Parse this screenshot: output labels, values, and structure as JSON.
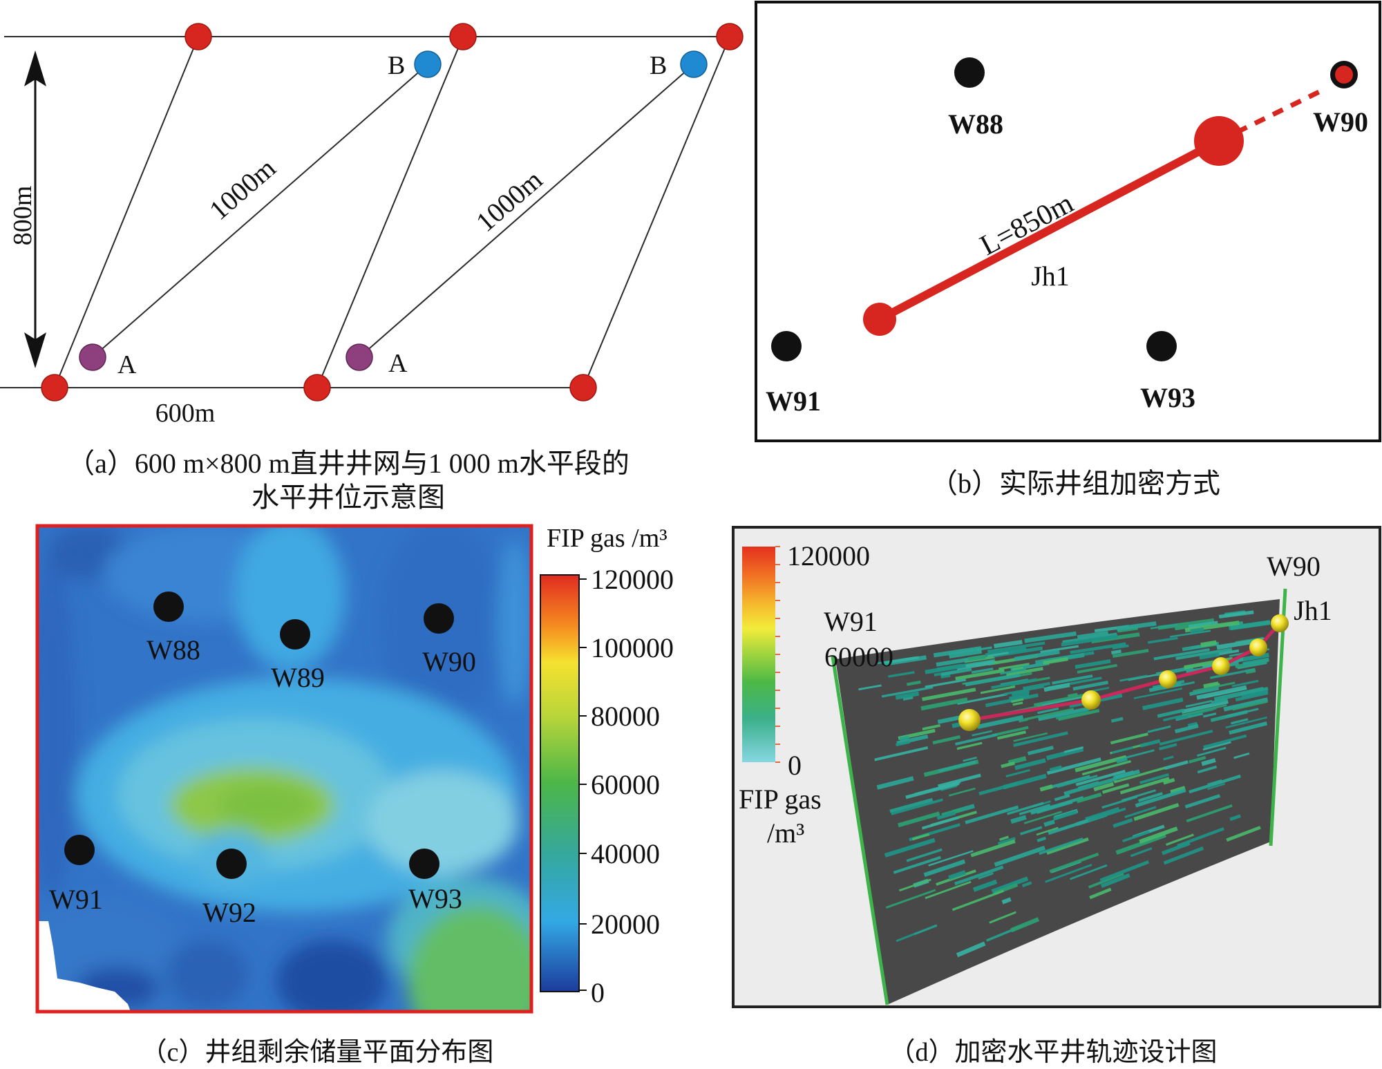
{
  "panel_a": {
    "label_b_left": "B",
    "label_b_right": "B",
    "label_a_left": "A",
    "label_a_right": "A",
    "length_left": "1000m",
    "length_right": "1000m",
    "vertical_spacing": "800m",
    "horizontal_spacing": "600m",
    "caption_line1": "（a）600 m×800 m直井井网与1 000 m水平段的",
    "caption_line2": "水平井位示意图"
  },
  "panel_b": {
    "wells": {
      "w88": "W88",
      "w90": "W90",
      "w91": "W91",
      "w93": "W93"
    },
    "length_label": "L=850m",
    "horizontal_well": "Jh1",
    "caption": "（b）实际井组加密方式"
  },
  "panel_c": {
    "wells": {
      "w88": "W88",
      "w89": "W89",
      "w90": "W90",
      "w91": "W91",
      "w92": "W92",
      "w93": "W93"
    },
    "colorbar": {
      "title": "FIP gas /m³",
      "ticks": [
        "120000",
        "100000",
        "80000",
        "60000",
        "40000",
        "20000",
        "0"
      ]
    },
    "caption": "（c）井组剩余储量平面分布图"
  },
  "panel_d": {
    "colorbar": {
      "ticks": [
        "120000",
        "60000",
        "0"
      ],
      "title_line1": "FIP gas",
      "title_line2": "/m³"
    },
    "wells": {
      "w91": "W91",
      "w90": "W90",
      "jh1": "Jh1"
    },
    "caption": "（d）加密水平井轨迹设计图"
  },
  "colors": {
    "vertical_well": "#d7261f",
    "endpoint_b": "#1f8ad2",
    "endpoint_a": "#8e3f7d",
    "existing_well": "#111111",
    "horizontal_well": "#d7261f",
    "map_border": "#e01f1f",
    "section_fill": "#484848",
    "well_trace": "#3cb44a",
    "trajectory": "#c8285a",
    "panel_d_background": "#ececec"
  }
}
